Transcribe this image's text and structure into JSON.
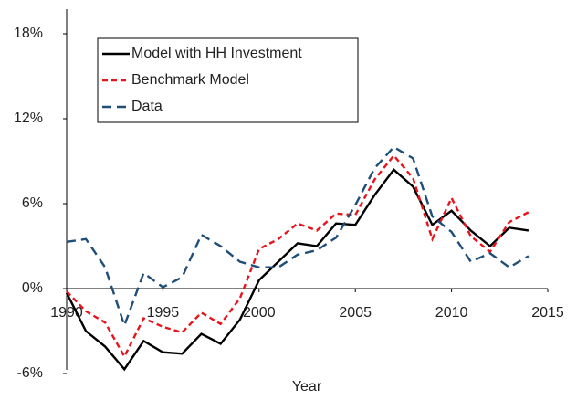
{
  "chart_data": {
    "type": "line",
    "x_label": "Year",
    "x": [
      1990,
      1991,
      1992,
      1993,
      1994,
      1995,
      1996,
      1997,
      1998,
      1999,
      2000,
      2001,
      2002,
      2003,
      2004,
      2005,
      2006,
      2007,
      2008,
      2009,
      2010,
      2011,
      2012,
      2013,
      2014
    ],
    "series": [
      {
        "name": "Model with HH Investment",
        "color": "#000000",
        "dash": "solid",
        "values": [
          -0.3,
          -3.0,
          -4.1,
          -5.7,
          -3.7,
          -4.5,
          -4.6,
          -3.2,
          -3.9,
          -2.2,
          0.6,
          1.9,
          3.2,
          3.0,
          4.6,
          4.5,
          6.6,
          8.4,
          7.2,
          4.5,
          5.5,
          4.1,
          3.0,
          4.3,
          4.1
        ]
      },
      {
        "name": "Benchmark Model",
        "color": "#e8141c",
        "dash": "dashed",
        "values": [
          -0.2,
          -1.6,
          -2.4,
          -4.8,
          -2.1,
          -2.7,
          -3.1,
          -1.7,
          -2.5,
          -0.7,
          2.8,
          3.5,
          4.6,
          4.1,
          5.3,
          5.2,
          7.7,
          9.4,
          7.8,
          3.5,
          6.4,
          3.7,
          2.6,
          4.7,
          5.4
        ]
      },
      {
        "name": "Data",
        "color": "#1f4e79",
        "dash": "longdash",
        "values": [
          3.3,
          3.5,
          1.5,
          -2.6,
          1.1,
          0.1,
          0.8,
          3.8,
          3.0,
          1.9,
          1.5,
          1.5,
          2.4,
          2.7,
          3.6,
          5.9,
          8.5,
          10.0,
          9.2,
          5.1,
          4.0,
          1.9,
          2.5,
          1.5,
          2.3
        ]
      }
    ],
    "xlim": [
      1990,
      2015
    ],
    "xticks": [
      1990,
      1995,
      2000,
      2005,
      2010,
      2015
    ],
    "ylim": [
      -6,
      20
    ],
    "yticks": [
      {
        "value": -6,
        "label": "-6%"
      },
      {
        "value": 0,
        "label": "0%"
      },
      {
        "value": 6,
        "label": "6%"
      },
      {
        "value": 12,
        "label": "12%"
      },
      {
        "value": 18,
        "label": "18%"
      }
    ],
    "grid": false,
    "legend": "top-left"
  }
}
